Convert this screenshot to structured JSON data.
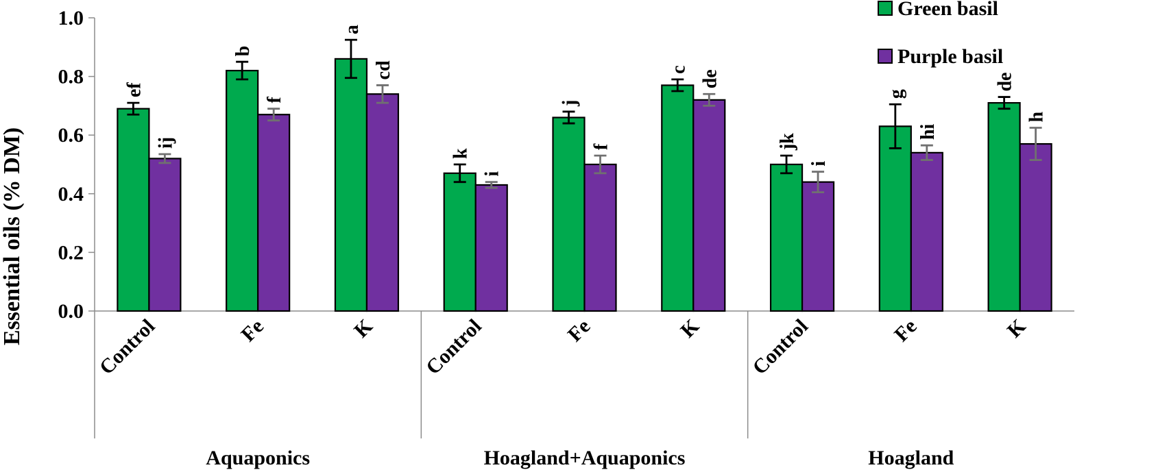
{
  "chart_data": {
    "type": "bar",
    "title": "",
    "xlabel": "",
    "ylabel": "Essential oils (% DM)",
    "ylim": [
      0,
      1.0
    ],
    "yticks": [
      "0.0",
      "0.2",
      "0.4",
      "0.6",
      "0.8",
      "1.0"
    ],
    "grid": false,
    "legend_position": "top-right",
    "colors": {
      "Green basil": "#00AA4E",
      "Purple basil": "#7030A0",
      "error_green": "#000000",
      "error_purple": "#707070"
    },
    "groups": [
      {
        "name": "Aquaponics",
        "categories": [
          "Control",
          "Fe",
          "K"
        ]
      },
      {
        "name": "Hoagland+Aquaponics",
        "categories": [
          "Control",
          "Fe",
          "K"
        ]
      },
      {
        "name": "Hoagland",
        "categories": [
          "Control",
          "Fe",
          "K"
        ]
      }
    ],
    "categories": [
      "Control",
      "Fe",
      "K",
      "Control",
      "Fe",
      "K",
      "Control",
      "Fe",
      "K"
    ],
    "series": [
      {
        "name": "Green basil",
        "values": [
          0.69,
          0.82,
          0.86,
          0.47,
          0.66,
          0.77,
          0.5,
          0.63,
          0.71
        ],
        "errors": [
          0.02,
          0.03,
          0.065,
          0.03,
          0.02,
          0.02,
          0.03,
          0.075,
          0.02
        ],
        "labels": [
          "ef",
          "b",
          "a",
          "k",
          "j",
          "c",
          "jk",
          "g",
          "de"
        ]
      },
      {
        "name": "Purple basil",
        "values": [
          0.52,
          0.67,
          0.74,
          0.43,
          0.5,
          0.72,
          0.44,
          0.54,
          0.57
        ],
        "errors": [
          0.015,
          0.02,
          0.03,
          0.01,
          0.03,
          0.02,
          0.035,
          0.025,
          0.055
        ],
        "labels": [
          "ij",
          "f",
          "cd",
          "i",
          "f",
          "de",
          "i",
          "hi",
          "h"
        ]
      }
    ]
  }
}
